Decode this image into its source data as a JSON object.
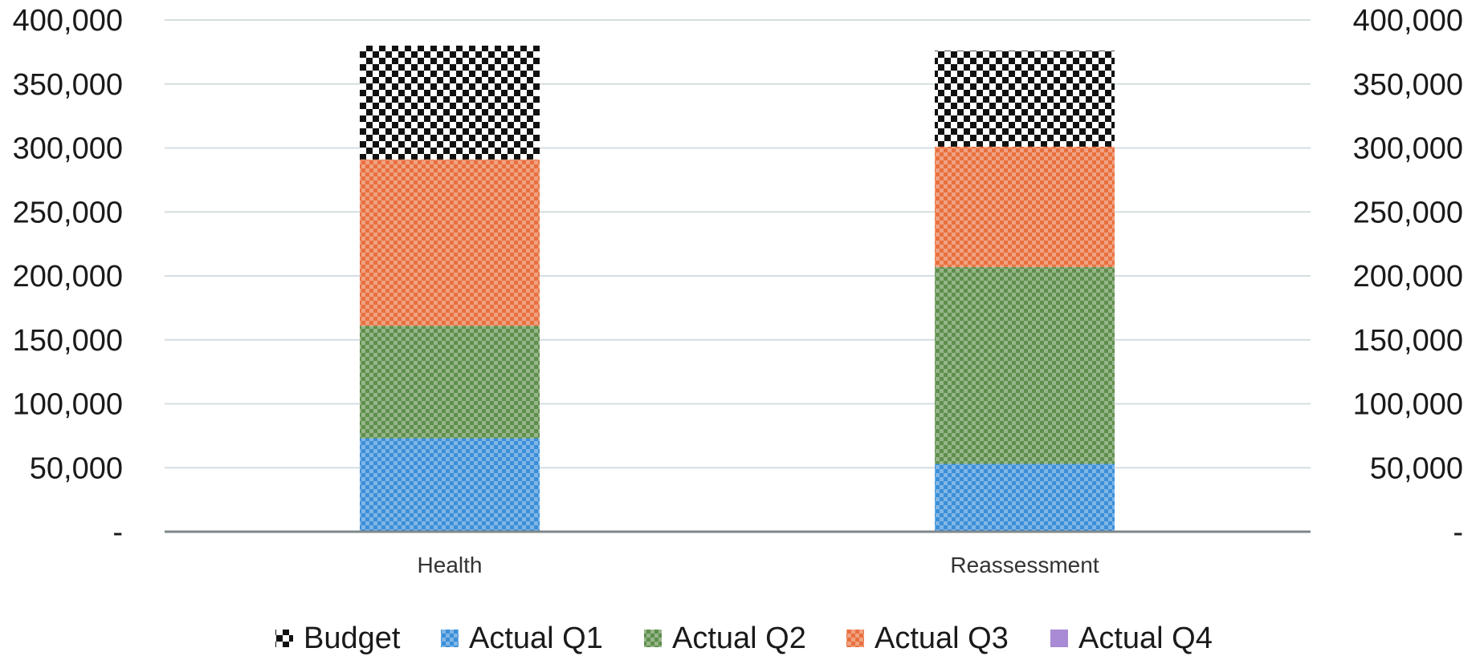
{
  "chart_data": {
    "type": "bar",
    "stacked": true,
    "categories": [
      "Health",
      "Reassessment"
    ],
    "series": [
      {
        "name": "Actual Q1",
        "values": [
          73000,
          53000
        ],
        "color": "#3b8fd9"
      },
      {
        "name": "Actual Q2",
        "values": [
          88000,
          154000
        ],
        "color": "#5f8f4c"
      },
      {
        "name": "Actual Q3",
        "values": [
          130000,
          94000
        ],
        "color": "#e8703f"
      },
      {
        "name": "Actual Q4",
        "values": [
          0,
          0
        ],
        "color": "#a98ad4"
      },
      {
        "name": "Budget",
        "values": [
          89000,
          75000
        ],
        "color": "#111111"
      }
    ],
    "budget_totals": [
      380000,
      376000
    ],
    "ylim": [
      0,
      400000
    ],
    "y_ticks": [
      "-",
      "50,000",
      "100,000",
      "150,000",
      "200,000",
      "250,000",
      "300,000",
      "350,000",
      "400,000"
    ],
    "y_tick_values": [
      0,
      50000,
      100000,
      150000,
      200000,
      250000,
      300000,
      350000,
      400000
    ],
    "secondary_y_axis": true,
    "grid": true,
    "legend_position": "bottom",
    "legend": [
      "Budget",
      "Actual Q1",
      "Actual Q2",
      "Actual Q3",
      "Actual Q4"
    ],
    "title": "",
    "xlabel": "",
    "ylabel": ""
  }
}
